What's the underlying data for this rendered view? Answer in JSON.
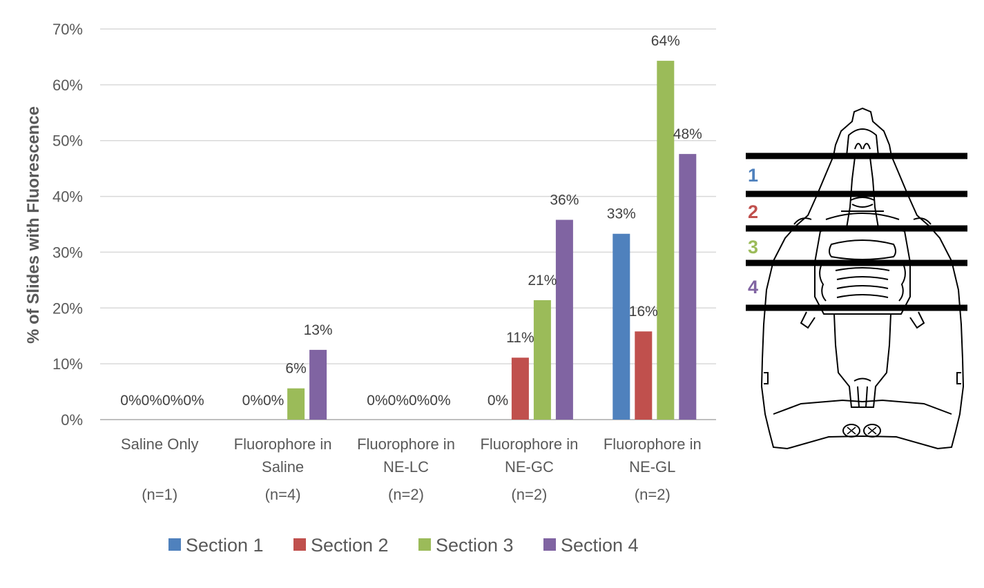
{
  "chart_data": {
    "type": "bar",
    "ylabel": "% of Slides with Fluorescence",
    "ylim": [
      0,
      70
    ],
    "y_ticks": [
      "0%",
      "10%",
      "20%",
      "30%",
      "40%",
      "50%",
      "60%",
      "70%"
    ],
    "grid": true,
    "legend_position": "bottom",
    "categories": [
      {
        "lines": [
          "Saline Only",
          ""
        ],
        "n": "(n=1)"
      },
      {
        "lines": [
          "Fluorophore in",
          "Saline"
        ],
        "n": "(n=4)"
      },
      {
        "lines": [
          "Fluorophore in",
          "NE-LC"
        ],
        "n": "(n=2)"
      },
      {
        "lines": [
          "Fluorophore in",
          "NE-GC"
        ],
        "n": "(n=2)"
      },
      {
        "lines": [
          "Fluorophore in",
          "NE-GL"
        ],
        "n": "(n=2)"
      }
    ],
    "series": [
      {
        "name": "Section 1",
        "color": "#4f81bd",
        "values": [
          0,
          0,
          0,
          0,
          33.3
        ],
        "labels": [
          "0%",
          "",
          "0%",
          "0%",
          "33%"
        ]
      },
      {
        "name": "Section 2",
        "color": "#c0504d",
        "values": [
          0,
          0,
          0,
          11.1,
          15.8
        ],
        "labels": [
          "0%",
          "0%",
          "0%",
          "11%",
          "16%"
        ]
      },
      {
        "name": "Section 3",
        "color": "#9bbb59",
        "values": [
          0,
          5.6,
          0,
          21.4,
          64.3
        ],
        "labels": [
          "0%",
          "6%",
          "0%",
          "21%",
          "64%"
        ]
      },
      {
        "name": "Section 4",
        "color": "#8064a2",
        "values": [
          0,
          12.5,
          0,
          35.8,
          47.6
        ],
        "labels": [
          "0%",
          "13%",
          "0%",
          "36%",
          "48%"
        ]
      }
    ],
    "combined_zero_labels": [
      "0%0%0%0%",
      "0%0%",
      "0%0%0%0%",
      "0%"
    ]
  },
  "diagram": {
    "section_numbers": [
      {
        "text": "1",
        "color": "#4f81bd"
      },
      {
        "text": "2",
        "color": "#c0504d"
      },
      {
        "text": "3",
        "color": "#9bbb59"
      },
      {
        "text": "4",
        "color": "#8064a2"
      }
    ]
  }
}
